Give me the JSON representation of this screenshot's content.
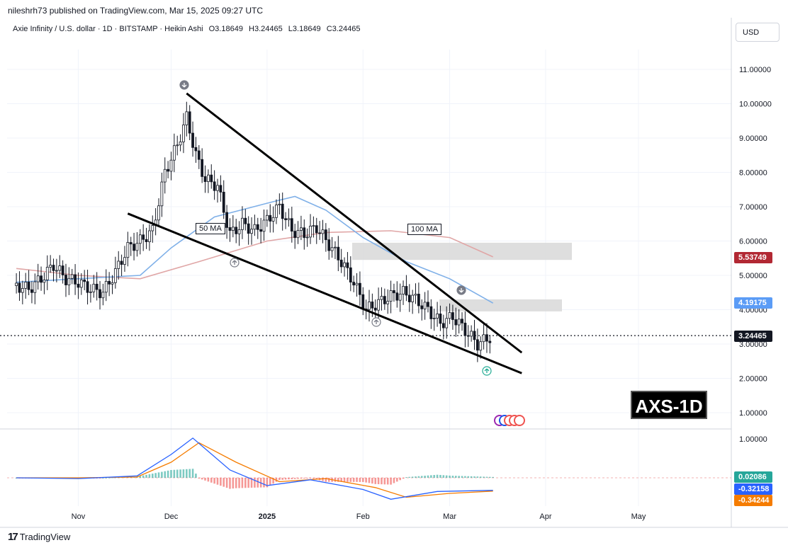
{
  "publisher": "nileshrh73 published on TradingView.com, Mar 15, 2025 09:27 UTC",
  "legend": {
    "symbol": "Axie Infinity / U.S. dollar · 1D · BITSTAMP · Heikin Ashi",
    "open": "O3.18649",
    "high": "H3.24465",
    "low": "L3.18649",
    "close": "C3.24465"
  },
  "currency_button": "USD",
  "chart_label": "AXS-1D",
  "ma_labels": {
    "ma50": "50 MA",
    "ma100": "100 MA"
  },
  "price_tags": {
    "ma100": "5.53749",
    "ma50": "4.19175",
    "last": "3.24465",
    "macd_hist": "0.02086",
    "macd": "-0.32158",
    "signal": "-0.34244"
  },
  "footer": {
    "brand": "TradingView",
    "logo": "17"
  },
  "colors": {
    "up": "#131722",
    "down": "#131722",
    "ma50": "#7fb0e8",
    "ma100": "#e0a6a6",
    "ma100_tag": "#b22833",
    "ma50_tag": "#5b9cf6",
    "macd": "#2962ff",
    "signal": "#f57c00",
    "hist_up": "#26a69a",
    "hist_down": "#ef5350",
    "zone": "#d8d8d8"
  },
  "chart_data": {
    "type": "candlestick",
    "title": "Axie Infinity / U.S. dollar · 1D · BITSTAMP · Heikin Ashi",
    "y_ticks": [
      "11.00000",
      "10.00000",
      "9.00000",
      "8.00000",
      "7.00000",
      "6.00000",
      "5.00000",
      "4.00000",
      "3.00000",
      "2.00000",
      "1.00000"
    ],
    "x_ticks": [
      "Nov",
      "Dec",
      "2025",
      "Feb",
      "Mar",
      "Apr",
      "May"
    ],
    "macd_y_ticks": [
      "1.00000"
    ],
    "ylim": [
      0.5,
      11.8
    ],
    "close_series": [
      [
        "2024-10-12",
        4.7
      ],
      [
        "2024-10-16",
        4.6
      ],
      [
        "2024-10-20",
        4.9
      ],
      [
        "2024-10-24",
        5.3
      ],
      [
        "2024-10-28",
        4.9
      ],
      [
        "2024-11-01",
        4.8
      ],
      [
        "2024-11-05",
        4.6
      ],
      [
        "2024-11-09",
        4.5
      ],
      [
        "2024-11-13",
        5.1
      ],
      [
        "2024-11-17",
        5.8
      ],
      [
        "2024-11-21",
        6.0
      ],
      [
        "2024-11-25",
        6.3
      ],
      [
        "2024-11-29",
        8.0
      ],
      [
        "2024-12-03",
        8.8
      ],
      [
        "2024-12-06",
        9.6
      ],
      [
        "2024-12-09",
        8.5
      ],
      [
        "2024-12-12",
        7.8
      ],
      [
        "2024-12-16",
        7.6
      ],
      [
        "2024-12-20",
        6.2
      ],
      [
        "2024-12-24",
        6.5
      ],
      [
        "2024-12-28",
        6.3
      ],
      [
        "2025-01-01",
        6.6
      ],
      [
        "2025-01-05",
        7.0
      ],
      [
        "2025-01-09",
        6.3
      ],
      [
        "2025-01-13",
        6.2
      ],
      [
        "2025-01-17",
        6.4
      ],
      [
        "2025-01-21",
        5.9
      ],
      [
        "2025-01-25",
        5.4
      ],
      [
        "2025-01-29",
        4.8
      ],
      [
        "2025-02-02",
        4.0
      ],
      [
        "2025-02-06",
        4.2
      ],
      [
        "2025-02-10",
        4.4
      ],
      [
        "2025-02-14",
        4.5
      ],
      [
        "2025-02-18",
        4.3
      ],
      [
        "2025-02-22",
        4.0
      ],
      [
        "2025-02-26",
        3.6
      ],
      [
        "2025-03-02",
        3.8
      ],
      [
        "2025-03-06",
        3.4
      ],
      [
        "2025-03-10",
        3.0
      ],
      [
        "2025-03-15",
        3.24465
      ]
    ],
    "ma50": [
      [
        "2024-10-12",
        4.8
      ],
      [
        "2024-11-01",
        4.9
      ],
      [
        "2024-11-21",
        5.0
      ],
      [
        "2024-12-01",
        5.8
      ],
      [
        "2024-12-15",
        6.7
      ],
      [
        "2025-01-01",
        7.1
      ],
      [
        "2025-01-10",
        7.3
      ],
      [
        "2025-01-20",
        6.9
      ],
      [
        "2025-02-01",
        6.1
      ],
      [
        "2025-02-15",
        5.4
      ],
      [
        "2025-03-01",
        4.9
      ],
      [
        "2025-03-15",
        4.19175
      ]
    ],
    "ma100": [
      [
        "2024-10-12",
        5.2
      ],
      [
        "2024-11-01",
        5.0
      ],
      [
        "2024-11-21",
        4.9
      ],
      [
        "2024-12-10",
        5.4
      ],
      [
        "2025-01-01",
        6.0
      ],
      [
        "2025-01-20",
        6.25
      ],
      [
        "2025-02-10",
        6.3
      ],
      [
        "2025-03-01",
        6.1
      ],
      [
        "2025-03-15",
        5.53749
      ]
    ],
    "resistance_zones": [
      [
        5.45,
        5.95
      ],
      [
        3.95,
        4.3
      ]
    ],
    "wedge_upper": [
      [
        "2024-12-06",
        10.3
      ],
      [
        "2025-03-22",
        2.75
      ]
    ],
    "wedge_lower": [
      [
        "2024-11-17",
        6.8
      ],
      [
        "2025-03-22",
        2.15
      ]
    ],
    "last_price": 3.24465,
    "macd_series": [
      [
        "2024-10-12",
        0.0
      ],
      [
        "2024-11-01",
        -0.02
      ],
      [
        "2024-11-20",
        0.05
      ],
      [
        "2024-12-01",
        0.6
      ],
      [
        "2024-12-08",
        1.02
      ],
      [
        "2024-12-20",
        0.2
      ],
      [
        "2025-01-01",
        -0.2
      ],
      [
        "2025-01-15",
        -0.05
      ],
      [
        "2025-02-01",
        -0.3
      ],
      [
        "2025-02-10",
        -0.55
      ],
      [
        "2025-02-25",
        -0.35
      ],
      [
        "2025-03-15",
        -0.32158
      ]
    ],
    "signal_series": [
      [
        "2024-10-12",
        0.0
      ],
      [
        "2024-11-01",
        0.0
      ],
      [
        "2024-11-20",
        0.02
      ],
      [
        "2024-12-01",
        0.4
      ],
      [
        "2024-12-10",
        0.9
      ],
      [
        "2024-12-22",
        0.4
      ],
      [
        "2025-01-05",
        -0.1
      ],
      [
        "2025-01-20",
        -0.02
      ],
      [
        "2025-02-05",
        -0.25
      ],
      [
        "2025-02-15",
        -0.5
      ],
      [
        "2025-03-01",
        -0.4
      ],
      [
        "2025-03-15",
        -0.34244
      ]
    ]
  }
}
